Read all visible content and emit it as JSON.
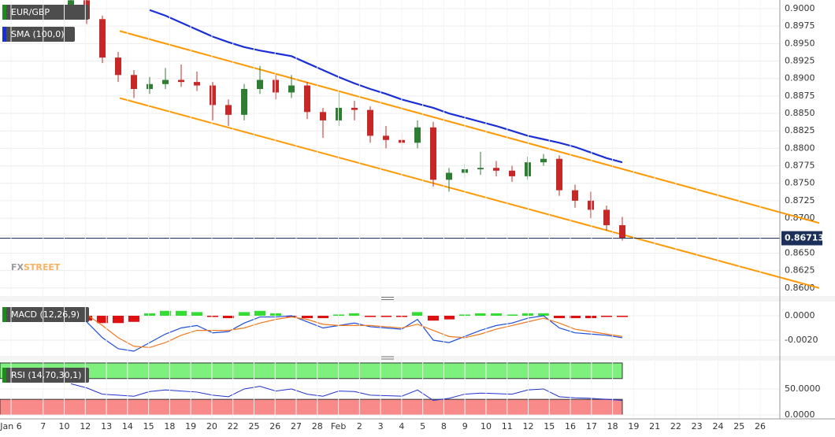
{
  "chart_data": [
    {
      "type": "candlestick",
      "title": "EUR/GBP",
      "indicator_label": "SMA (100,0)",
      "watermark": [
        "FX",
        "STREET"
      ],
      "open": [
        0.9005,
        0.9012,
        0.8985,
        0.893,
        0.8905,
        0.8885,
        0.8892,
        0.8898,
        0.8895,
        0.889,
        0.8862,
        0.8848,
        0.8885,
        0.8898,
        0.888,
        0.889,
        0.8852,
        0.884,
        0.8858,
        0.8855,
        0.8818,
        0.8812,
        0.8808,
        0.883,
        0.8755,
        0.8765,
        0.877,
        0.8772,
        0.8768,
        0.876,
        0.878,
        0.8785,
        0.874,
        0.8725,
        0.8712,
        0.869
      ],
      "high": [
        0.902,
        0.9018,
        0.899,
        0.8938,
        0.8912,
        0.8902,
        0.8915,
        0.892,
        0.891,
        0.8895,
        0.887,
        0.8892,
        0.8918,
        0.8905,
        0.8905,
        0.8895,
        0.8858,
        0.888,
        0.8868,
        0.886,
        0.8832,
        0.8822,
        0.884,
        0.8838,
        0.8772,
        0.8778,
        0.8795,
        0.8782,
        0.8775,
        0.8788,
        0.8792,
        0.879,
        0.8748,
        0.8738,
        0.8718,
        0.8702
      ],
      "low": [
        0.9,
        0.8978,
        0.8922,
        0.8895,
        0.8872,
        0.8878,
        0.8885,
        0.8888,
        0.8882,
        0.884,
        0.8832,
        0.884,
        0.8878,
        0.887,
        0.8872,
        0.8842,
        0.8815,
        0.8832,
        0.884,
        0.8808,
        0.88,
        0.8798,
        0.88,
        0.8745,
        0.8738,
        0.8758,
        0.8762,
        0.876,
        0.8752,
        0.8755,
        0.8775,
        0.8732,
        0.8715,
        0.87,
        0.8682,
        0.8668
      ],
      "close": [
        0.9012,
        0.8985,
        0.893,
        0.8905,
        0.8885,
        0.8892,
        0.8898,
        0.8895,
        0.889,
        0.8862,
        0.8848,
        0.8885,
        0.8898,
        0.888,
        0.889,
        0.8852,
        0.884,
        0.8858,
        0.8855,
        0.8818,
        0.8812,
        0.8808,
        0.883,
        0.8755,
        0.8765,
        0.877,
        0.8772,
        0.8768,
        0.876,
        0.878,
        0.8785,
        0.874,
        0.8725,
        0.8712,
        0.869,
        0.8671
      ],
      "up_color": "#2e7d32",
      "down_color": "#c62828",
      "sma": {
        "color": "#1a2fd6",
        "values": [
          null,
          null,
          null,
          null,
          null,
          0.8998,
          0.899,
          0.898,
          0.897,
          0.896,
          0.8952,
          0.8945,
          0.894,
          0.8936,
          0.8932,
          0.8922,
          0.8912,
          0.8902,
          0.8893,
          0.8885,
          0.8878,
          0.887,
          0.8864,
          0.8858,
          0.885,
          0.8844,
          0.8838,
          0.8832,
          0.8825,
          0.8818,
          0.8813,
          0.8808,
          0.8802,
          0.8794,
          0.8786,
          0.878
        ]
      },
      "channels": [
        {
          "color": "#ff9800",
          "x": [
            3.1,
            47.5
          ],
          "values": [
            0.8968,
            0.8693
          ]
        },
        {
          "color": "#ff9800",
          "x": [
            3.1,
            47.5
          ],
          "values": [
            0.8872,
            0.86
          ]
        }
      ],
      "last_price": {
        "value": 0.86713,
        "label": "0.86713"
      },
      "ylim": [
        0.8593,
        0.90124
      ],
      "yticks": [
        {
          "value": 0.9,
          "label": "0.9000"
        },
        {
          "value": 0.8975,
          "label": "0.8975"
        },
        {
          "value": 0.895,
          "label": "0.8950"
        },
        {
          "value": 0.8925,
          "label": "0.8925"
        },
        {
          "value": 0.89,
          "label": "0.8900"
        },
        {
          "value": 0.8875,
          "label": "0.8875"
        },
        {
          "value": 0.885,
          "label": "0.8850"
        },
        {
          "value": 0.8825,
          "label": "0.8825"
        },
        {
          "value": 0.88,
          "label": "0.8800"
        },
        {
          "value": 0.8775,
          "label": "0.8775"
        },
        {
          "value": 0.875,
          "label": "0.8750"
        },
        {
          "value": 0.8725,
          "label": "0.8725"
        },
        {
          "value": 0.87,
          "label": "0.8700"
        },
        {
          "value": 0.8675,
          "label": "0.8675"
        },
        {
          "value": 0.865,
          "label": "0.8650"
        },
        {
          "value": 0.8625,
          "label": "0.8625"
        },
        {
          "value": 0.86,
          "label": "0.8600"
        }
      ],
      "grid": true
    },
    {
      "type": "macd",
      "title": "MACD (12,26,9)",
      "histogram": [
        -0.0002,
        -0.0004,
        -0.0006,
        -0.0006,
        -0.0005,
        0.0002,
        0.0004,
        0.0004,
        0.0003,
        -0.0001,
        -0.0002,
        0.0003,
        0.0004,
        0.0002,
        -0.0001,
        -0.0002,
        -0.0002,
        0.0001,
        0.0002,
        -0.0001,
        -0.0001,
        -0.0001,
        0.0003,
        -0.0004,
        -0.0003,
        0.0001,
        0.0002,
        0.0002,
        0.0001,
        0.0002,
        0.0002,
        -0.0002,
        -0.0002,
        -0.0002,
        -0.0001,
        -0.0001
      ],
      "pos_color": "#33dd33",
      "neg_color": "#dd1111",
      "series": [
        {
          "color": "#1f4fd8",
          "values": [
            0.0004,
            -0.0005,
            -0.0018,
            -0.0027,
            -0.0029,
            -0.0022,
            -0.0015,
            -0.001,
            -0.0008,
            -0.0014,
            -0.0013,
            -0.0006,
            -0.0001,
            -0.0001,
            0.0,
            -0.0005,
            -0.001,
            -0.0008,
            -0.0006,
            -0.0009,
            -0.001,
            -0.0011,
            -0.0003,
            -0.002,
            -0.0022,
            -0.0017,
            -0.0012,
            -0.0008,
            -0.0006,
            -0.0002,
            0.0,
            -0.001,
            -0.0014,
            -0.0015,
            -0.0016,
            -0.0018
          ]
        },
        {
          "color": "#f07820",
          "values": [
            0.0006,
            0.0001,
            -0.0008,
            -0.0018,
            -0.0025,
            -0.0026,
            -0.0022,
            -0.0016,
            -0.0012,
            -0.0012,
            -0.0012,
            -0.001,
            -0.0006,
            -0.0003,
            -0.0001,
            -0.0003,
            -0.0007,
            -0.0008,
            -0.0008,
            -0.0008,
            -0.0009,
            -0.001,
            -0.0007,
            -0.0012,
            -0.0017,
            -0.0018,
            -0.0015,
            -0.0011,
            -0.0008,
            -0.0005,
            -0.0002,
            -0.0006,
            -0.0011,
            -0.0013,
            -0.0015,
            -0.0017
          ]
        }
      ],
      "ylim": [
        -0.00316,
        0.00116
      ],
      "yticks": [
        {
          "value": 0,
          "label": "0.0000"
        },
        {
          "value": -0.002,
          "label": "-0.0020"
        }
      ]
    },
    {
      "type": "rsi",
      "title": "RSI (14,70,30,1)",
      "values": [
        60,
        52,
        40,
        38,
        36,
        45,
        48,
        46,
        44,
        38,
        35,
        50,
        55,
        46,
        50,
        40,
        36,
        46,
        45,
        38,
        37,
        36,
        48,
        28,
        32,
        40,
        42,
        41,
        40,
        48,
        50,
        35,
        33,
        32,
        30,
        28
      ],
      "color": "#2233cc",
      "upper_band": [
        70,
        100
      ],
      "upper_color": "#7ef07e",
      "lower_band": [
        0,
        30
      ],
      "lower_color": "#f98a8a",
      "ylim": [
        -7.6,
        104.5
      ],
      "yticks": [
        {
          "value": 50,
          "label": "50.0000"
        },
        {
          "value": 0,
          "label": "0.0000"
        }
      ],
      "categories": [
        "Jan 6",
        "7",
        "10",
        "12",
        "13",
        "14",
        "15",
        "18",
        "19",
        "20",
        "22",
        "25",
        "26",
        "27",
        "28",
        "Feb",
        "2",
        "3",
        "4",
        "5",
        "8",
        "9",
        "10",
        "11",
        "12",
        "15",
        "16",
        "17",
        "18",
        "19",
        "21",
        "22",
        "23",
        "24",
        "25",
        "26"
      ]
    }
  ]
}
